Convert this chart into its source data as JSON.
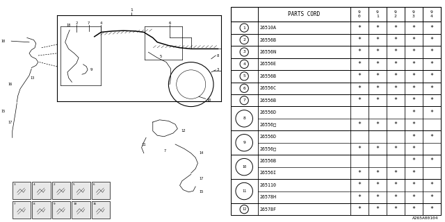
{
  "bg_color": "#ffffff",
  "dark": "#000000",
  "table": {
    "rows": [
      {
        "num": "1",
        "code": "26510A",
        "cols": [
          true,
          true,
          true,
          true,
          true
        ],
        "span": 1
      },
      {
        "num": "2",
        "code": "26556B",
        "cols": [
          true,
          true,
          true,
          true,
          true
        ],
        "span": 1
      },
      {
        "num": "3",
        "code": "26556N",
        "cols": [
          true,
          true,
          true,
          true,
          true
        ],
        "span": 1
      },
      {
        "num": "4",
        "code": "26556E",
        "cols": [
          true,
          true,
          true,
          true,
          true
        ],
        "span": 1
      },
      {
        "num": "5",
        "code": "26556B",
        "cols": [
          true,
          true,
          true,
          true,
          true
        ],
        "span": 1
      },
      {
        "num": "6",
        "code": "26556C",
        "cols": [
          true,
          true,
          true,
          true,
          true
        ],
        "span": 1
      },
      {
        "num": "7",
        "code": "26556B",
        "cols": [
          true,
          true,
          true,
          true,
          true
        ],
        "span": 1
      },
      {
        "num": "8",
        "code": "26556D",
        "cols": [
          false,
          false,
          false,
          true,
          true
        ],
        "span": 2,
        "sub": "26556□",
        "sub_cols": [
          true,
          true,
          true,
          true,
          false
        ]
      },
      {
        "num": "9",
        "code": "26556D",
        "cols": [
          false,
          false,
          false,
          true,
          true
        ],
        "span": 2,
        "sub": "26556□",
        "sub_cols": [
          true,
          true,
          true,
          true,
          false
        ]
      },
      {
        "num": "10",
        "code": "26556B",
        "cols": [
          false,
          false,
          false,
          true,
          true
        ],
        "span": 2,
        "sub": "26556I",
        "sub_cols": [
          true,
          true,
          true,
          true,
          false
        ]
      },
      {
        "num": "11",
        "code": "265110",
        "cols": [
          true,
          true,
          true,
          true,
          true
        ],
        "span": 2,
        "sub": "26578H",
        "sub_cols": [
          true,
          true,
          true,
          true,
          true
        ]
      },
      {
        "num": "12",
        "code": "26578F",
        "cols": [
          true,
          true,
          true,
          true,
          true
        ],
        "span": 1
      }
    ]
  },
  "footer": "A265A00104",
  "year_labels": [
    "9\n0",
    "9\n1",
    "9\n2",
    "9\n3",
    "9\n4"
  ]
}
